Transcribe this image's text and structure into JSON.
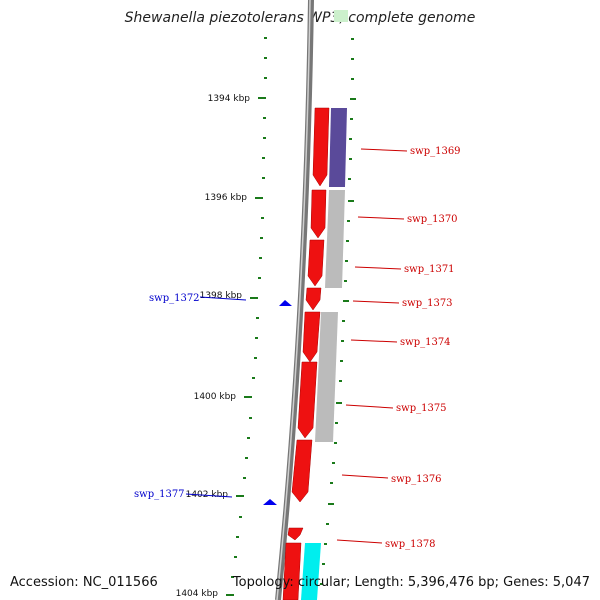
{
  "title": "Shewanella piezotolerans WP3, complete genome",
  "accession": "Accession: NC_011566",
  "topology": "Topology: circular; Length: 5,396,476 bp; Genes: 5,047",
  "ticks": [
    "1394 kbp",
    "1396 kbp",
    "1398 kbp",
    "1400 kbp",
    "1402 kbp",
    "1404 kbp"
  ],
  "genes_right": [
    "swp_1369",
    "swp_1370",
    "swp_1371",
    "swp_1373",
    "swp_1374",
    "swp_1375",
    "swp_1376",
    "swp_1378"
  ],
  "genes_left": [
    "swp_1372",
    "swp_1377"
  ],
  "colors": {
    "forward": "#ee1111",
    "cog_purple": "#5a4a9a",
    "cog_grey": "#bbbbbb",
    "cog_cyan": "#00eeee",
    "backbone": "#8a8a8a",
    "tick": "#1a7a1a",
    "marker": "#0000ee"
  }
}
